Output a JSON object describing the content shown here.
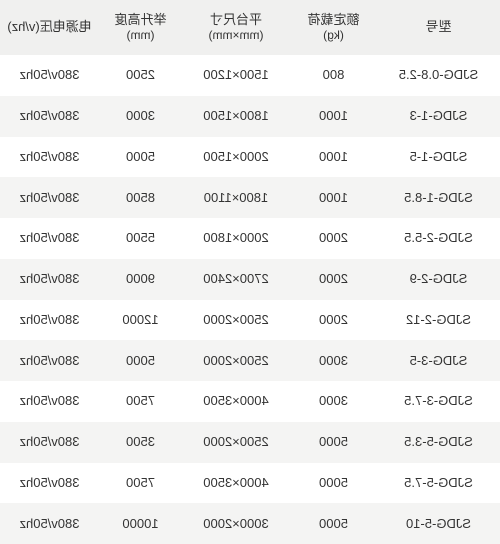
{
  "table": {
    "header_bg": "#f0f0ef",
    "row_bg_alt": "#f4f4f3",
    "row_bg": "#ffffff",
    "text_color": "#333333",
    "columns": [
      {
        "label": "型号",
        "sub": ""
      },
      {
        "label": "额定载荷",
        "sub": "(kg)"
      },
      {
        "label": "平台尺寸",
        "sub": "(mm×mm)"
      },
      {
        "label": "举升高度",
        "sub": "(mm)"
      },
      {
        "label": "电源电压(v/hz)",
        "sub": ""
      }
    ],
    "rows": [
      [
        "SJDG-0.8-2.5",
        "800",
        "1500×1200",
        "2500",
        "380v/50hz"
      ],
      [
        "SJDG-1-3",
        "1000",
        "1800×1500",
        "3000",
        "380v/50hz"
      ],
      [
        "SJDG-1-5",
        "1000",
        "2000×1500",
        "5000",
        "380v/50hz"
      ],
      [
        "SJDG-1-8.5",
        "1000",
        "1800×1100",
        "8500",
        "380v/50hz"
      ],
      [
        "SJDG-2-5.5",
        "2000",
        "2000×1800",
        "5500",
        "380v/50hz"
      ],
      [
        "SJDG-2-9",
        "2000",
        "2700×2400",
        "9000",
        "380v/50hz"
      ],
      [
        "SJDG-2-12",
        "2000",
        "2500×2000",
        "12000",
        "380v/50hz"
      ],
      [
        "SJDG-3-5",
        "3000",
        "2500×2000",
        "5000",
        "380v/50hz"
      ],
      [
        "SJDG-3-7.5",
        "3000",
        "4000×3500",
        "7500",
        "380v/50hz"
      ],
      [
        "SJDG-5-3.5",
        "5000",
        "2500×2000",
        "3500",
        "380v/50hz"
      ],
      [
        "SJDG-5-7.5",
        "5000",
        "4000×3500",
        "7500",
        "380v/50hz"
      ],
      [
        "SJDG-5-10",
        "5000",
        "3000×2000",
        "10000",
        "380v/50hz"
      ]
    ]
  }
}
